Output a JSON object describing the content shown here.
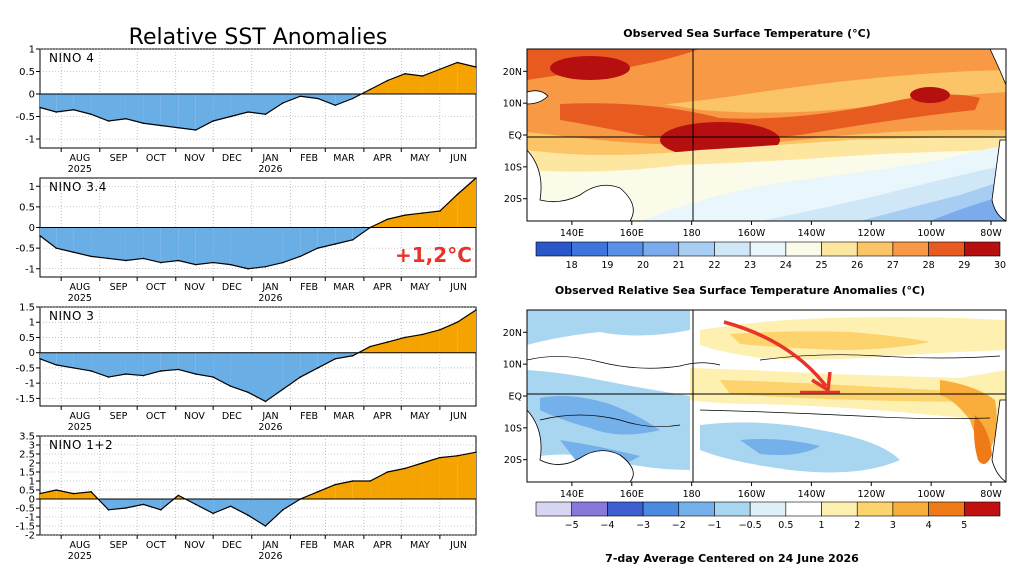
{
  "left": {
    "title": "Relative SST Anomalies",
    "months": [
      "AUG",
      "SEP",
      "OCT",
      "NOV",
      "DEC",
      "JAN",
      "FEB",
      "MAR",
      "APR",
      "MAY",
      "JUN"
    ],
    "year_labels": [
      {
        "month": "AUG",
        "year": "2025"
      },
      {
        "month": "JAN",
        "year": "2026"
      }
    ],
    "callout": "+1,2°C",
    "colors": {
      "warm": "#f5a300",
      "cool": "#6aaee6",
      "line": "#000000"
    }
  },
  "chart_data": [
    {
      "type": "area",
      "title": "NINO 4",
      "ylim": [
        -1.2,
        1
      ],
      "yticks": [
        "1",
        "0.5",
        "0",
        "-0.5",
        "-1"
      ],
      "x_range": [
        "2025-07-15",
        "2026-06-30"
      ],
      "x": [
        "2025-07-15",
        "2025-07-28",
        "2025-08-11",
        "2025-08-25",
        "2025-09-08",
        "2025-09-22",
        "2025-10-06",
        "2025-10-20",
        "2025-11-03",
        "2025-11-17",
        "2025-12-01",
        "2025-12-15",
        "2025-12-29",
        "2026-01-12",
        "2026-01-26",
        "2026-02-09",
        "2026-02-23",
        "2026-03-09",
        "2026-03-23",
        "2026-04-06",
        "2026-04-20",
        "2026-05-04",
        "2026-05-18",
        "2026-06-01",
        "2026-06-15",
        "2026-06-30"
      ],
      "values": [
        -0.3,
        -0.4,
        -0.35,
        -0.45,
        -0.6,
        -0.55,
        -0.65,
        -0.7,
        -0.75,
        -0.8,
        -0.6,
        -0.5,
        -0.4,
        -0.45,
        -0.2,
        -0.05,
        -0.1,
        -0.25,
        -0.1,
        0.1,
        0.3,
        0.45,
        0.4,
        0.55,
        0.7,
        0.6
      ]
    },
    {
      "type": "area",
      "title": "NINO 3.4",
      "ylim": [
        -1.2,
        1.2
      ],
      "yticks": [
        "1",
        "0.5",
        "0",
        "-0.5",
        "-1"
      ],
      "x_range": [
        "2025-07-15",
        "2026-06-30"
      ],
      "x": [
        "2025-07-15",
        "2025-07-28",
        "2025-08-11",
        "2025-08-25",
        "2025-09-08",
        "2025-09-22",
        "2025-10-06",
        "2025-10-20",
        "2025-11-03",
        "2025-11-17",
        "2025-12-01",
        "2025-12-15",
        "2025-12-29",
        "2026-01-12",
        "2026-01-26",
        "2026-02-09",
        "2026-02-23",
        "2026-03-09",
        "2026-03-23",
        "2026-04-06",
        "2026-04-20",
        "2026-05-04",
        "2026-05-18",
        "2026-06-01",
        "2026-06-15",
        "2026-06-30"
      ],
      "values": [
        -0.2,
        -0.5,
        -0.6,
        -0.7,
        -0.75,
        -0.8,
        -0.75,
        -0.85,
        -0.8,
        -0.9,
        -0.85,
        -0.9,
        -1.0,
        -0.95,
        -0.85,
        -0.7,
        -0.5,
        -0.4,
        -0.3,
        0.0,
        0.2,
        0.3,
        0.35,
        0.4,
        0.8,
        1.2
      ]
    },
    {
      "type": "area",
      "title": "NINO 3",
      "ylim": [
        -1.75,
        1.5
      ],
      "yticks": [
        "1.5",
        "1",
        "0.5",
        "0",
        "-0.5",
        "-1",
        "-1.5"
      ],
      "x_range": [
        "2025-07-15",
        "2026-06-30"
      ],
      "x": [
        "2025-07-15",
        "2025-07-28",
        "2025-08-11",
        "2025-08-25",
        "2025-09-08",
        "2025-09-22",
        "2025-10-06",
        "2025-10-20",
        "2025-11-03",
        "2025-11-17",
        "2025-12-01",
        "2025-12-15",
        "2025-12-29",
        "2026-01-12",
        "2026-01-26",
        "2026-02-09",
        "2026-02-23",
        "2026-03-09",
        "2026-03-23",
        "2026-04-06",
        "2026-04-20",
        "2026-05-04",
        "2026-05-18",
        "2026-06-01",
        "2026-06-15",
        "2026-06-30"
      ],
      "values": [
        -0.2,
        -0.4,
        -0.5,
        -0.6,
        -0.8,
        -0.7,
        -0.75,
        -0.6,
        -0.55,
        -0.7,
        -0.8,
        -1.1,
        -1.3,
        -1.6,
        -1.2,
        -0.8,
        -0.5,
        -0.2,
        -0.1,
        0.2,
        0.35,
        0.5,
        0.6,
        0.75,
        1.0,
        1.4
      ]
    },
    {
      "type": "area",
      "title": "NINO 1+2",
      "ylim": [
        -2,
        3.5
      ],
      "yticks": [
        "3.5",
        "3",
        "2.5",
        "2",
        "1.5",
        "1",
        "0.5",
        "0",
        "-0.5",
        "-1",
        "-1.5",
        "-2"
      ],
      "x_range": [
        "2025-07-15",
        "2026-06-30"
      ],
      "x": [
        "2025-07-15",
        "2025-07-28",
        "2025-08-11",
        "2025-08-25",
        "2025-09-08",
        "2025-09-22",
        "2025-10-06",
        "2025-10-20",
        "2025-11-03",
        "2025-11-17",
        "2025-12-01",
        "2025-12-15",
        "2025-12-29",
        "2026-01-12",
        "2026-01-26",
        "2026-02-09",
        "2026-02-23",
        "2026-03-09",
        "2026-03-23",
        "2026-04-06",
        "2026-04-20",
        "2026-05-04",
        "2026-05-18",
        "2026-06-01",
        "2026-06-15",
        "2026-06-30"
      ],
      "values": [
        0.3,
        0.5,
        0.3,
        0.4,
        -0.6,
        -0.5,
        -0.3,
        -0.6,
        0.2,
        -0.3,
        -0.8,
        -0.4,
        -0.9,
        -1.5,
        -0.6,
        0.0,
        0.4,
        0.8,
        1.0,
        1.0,
        1.5,
        1.7,
        2.0,
        2.3,
        2.4,
        2.6
      ]
    },
    {
      "type": "heatmap",
      "title": "Observed Sea Surface Temperature (°C)",
      "x_ticks": [
        "140E",
        "160E",
        "180",
        "160W",
        "140W",
        "120W",
        "100W",
        "80W"
      ],
      "y_ticks": [
        "20N",
        "10N",
        "EQ",
        "10S",
        "20S"
      ],
      "colorbar_labels": [
        "18",
        "19",
        "20",
        "21",
        "22",
        "23",
        "24",
        "25",
        "26",
        "27",
        "28",
        "29",
        "30"
      ],
      "colorbar_colors": [
        "#2a57c8",
        "#3d75dc",
        "#5a90e6",
        "#7cabed",
        "#a7cdf2",
        "#cfe7f7",
        "#e9f6fb",
        "#fbfbea",
        "#fde7a0",
        "#fbc466",
        "#f89a45",
        "#e75b20",
        "#b50f0f"
      ]
    },
    {
      "type": "heatmap",
      "title": "Observed Relative Sea Surface Temperature Anomalies (°C)",
      "x_ticks": [
        "140E",
        "160E",
        "180",
        "160W",
        "140W",
        "120W",
        "100W",
        "80W"
      ],
      "y_ticks": [
        "20N",
        "10N",
        "EQ",
        "10S",
        "20S"
      ],
      "colorbar_labels": [
        "−5",
        "−4",
        "−3",
        "−2",
        "−1",
        "−0.5",
        "0.5",
        "1",
        "2",
        "3",
        "4",
        "5"
      ],
      "colorbar_colors": [
        "#d6d6f2",
        "#8a77da",
        "#3d5fd0",
        "#4a8be0",
        "#74b1ea",
        "#a8d6f1",
        "#dff1f8",
        "#ffffff",
        "#fdf0b0",
        "#fcd36c",
        "#f9ad3b",
        "#ef7a18",
        "#c01010"
      ],
      "footer": "7-day Average Centered on 24 June 2026"
    }
  ]
}
